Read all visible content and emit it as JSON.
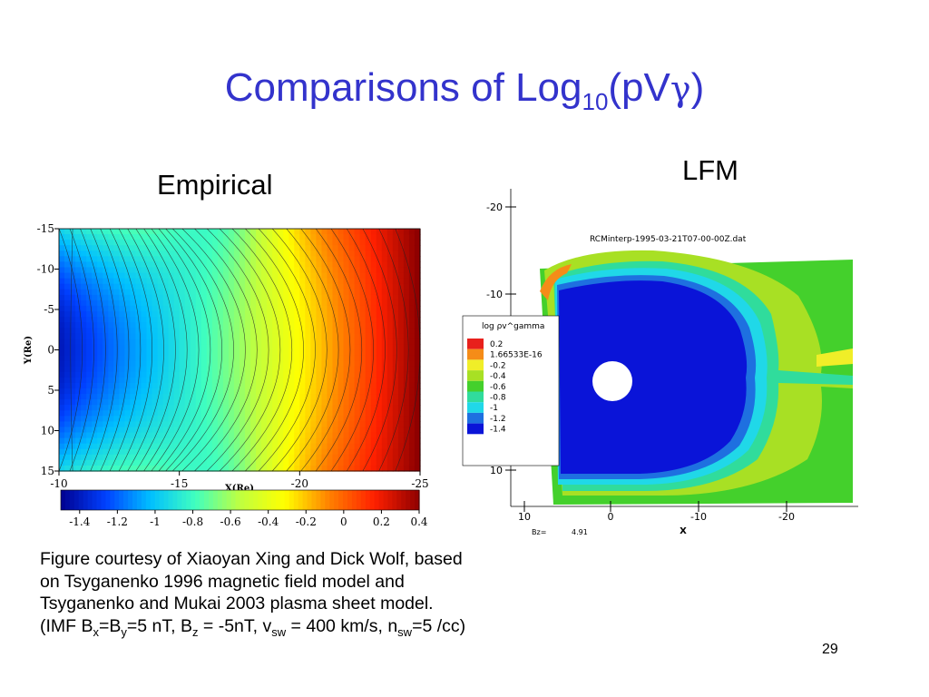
{
  "slide": {
    "title_main": "Comparisons of Log",
    "title_sub": "10",
    "title_open": "(pV",
    "title_gamma": "γ",
    "title_close": ")",
    "empirical_label": "Empirical",
    "lfm_label": "LFM",
    "caption": {
      "p1": "Figure courtesy of Xiaoyan Xing and Dick Wolf, based on Tsyganenko 1996 magnetic field model and Tsyganenko and Mukai 2003 plasma sheet model. (IMF B",
      "sub_x": "x",
      "p2": "=B",
      "sub_y": "y",
      "p3": "=5 nT, B",
      "sub_z": "z",
      "p4": " = -5nT, v",
      "sub_sw1": "sw",
      "p5": " = 400 km/s, n",
      "sub_sw2": "sw",
      "p6": "=5 /cc)"
    },
    "page_number": "29"
  },
  "chart_data": [
    {
      "type": "heatmap",
      "title": "",
      "xlabel": "X(Re)",
      "ylabel": "Y(Re)",
      "xlim": [
        -10,
        -25
      ],
      "ylim": [
        -15,
        15
      ],
      "x_ticks": [
        "-10",
        "-15",
        "-20",
        "-25"
      ],
      "y_ticks": [
        "-15",
        "-10",
        "-5",
        "0",
        "5",
        "10",
        "15"
      ],
      "colorbar": {
        "ticks": [
          "-1.4",
          "-1.2",
          "-1",
          "-0.8",
          "-0.6",
          "-0.4",
          "-0.2",
          "0",
          "0.2",
          "0.4"
        ],
        "range": [
          -1.5,
          0.4
        ]
      },
      "colormap": [
        "#00008f",
        "#0040ff",
        "#00bfff",
        "#40ffbf",
        "#bfff40",
        "#ffff00",
        "#ff8000",
        "#ff2000",
        "#8f0000"
      ]
    },
    {
      "type": "heatmap",
      "title": "RCMinterp-1995-03-21T07-00-00Z.dat",
      "xlabel": "X",
      "ylabel": "",
      "x_ticks": [
        "10",
        "0",
        "-10",
        "-20"
      ],
      "y_ticks": [
        "-20",
        "-10",
        "10"
      ],
      "legend": {
        "title": "log ρv^gamma",
        "entries": [
          {
            "label": "0.2",
            "color": "#e8201c"
          },
          {
            "label": "1.66533E-16",
            "color": "#f58c18"
          },
          {
            "label": "-0.2",
            "color": "#f0ee28"
          },
          {
            "label": "-0.4",
            "color": "#a8e024"
          },
          {
            "label": "-0.6",
            "color": "#44d02c"
          },
          {
            "label": "-0.8",
            "color": "#30dc9c"
          },
          {
            "label": "-1",
            "color": "#20d8e8"
          },
          {
            "label": "-1.2",
            "color": "#1e70e0"
          },
          {
            "label": "-1.4",
            "color": "#0a14d8"
          }
        ]
      },
      "annotation_label": "Bz=",
      "annotation_value": "4.91"
    }
  ]
}
